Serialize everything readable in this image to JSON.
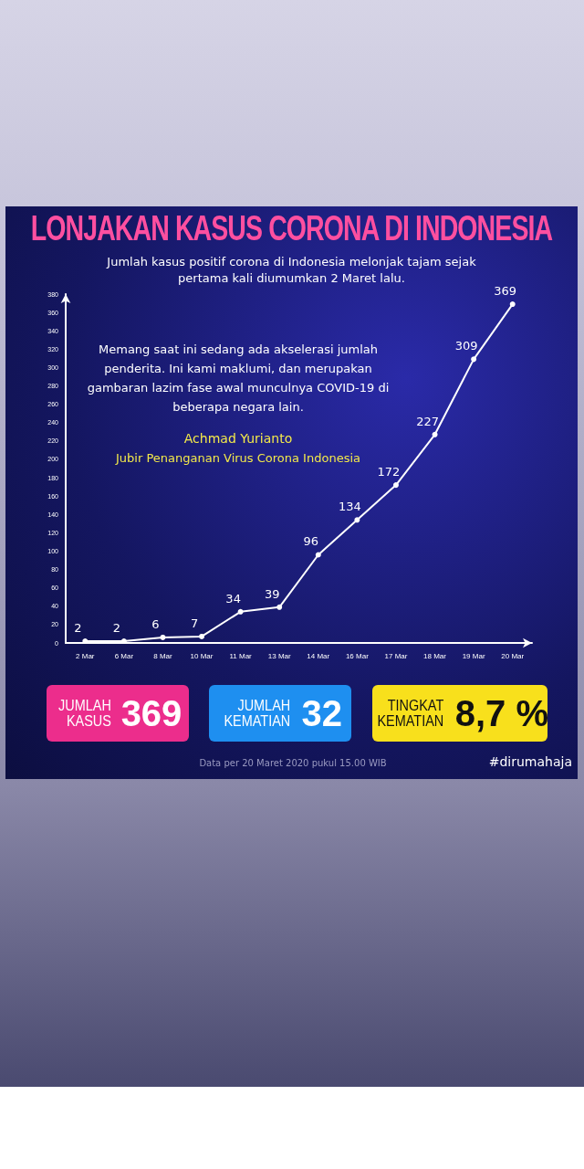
{
  "chart_data": {
    "type": "line",
    "title": "LONJAKAN KASUS CORONA DI INDONESIA",
    "subtitle": "Jumlah kasus positif corona di Indonesia melonjak tajam sejak pertama kali diumumkan 2 Maret lalu.",
    "categories": [
      "2 Mar",
      "6 Mar",
      "8 Mar",
      "10 Mar",
      "11 Mar",
      "13 Mar",
      "14 Mar",
      "16 Mar",
      "17 Mar",
      "18 Mar",
      "19 Mar",
      "20 Mar"
    ],
    "values": [
      2,
      2,
      6,
      7,
      34,
      39,
      96,
      134,
      172,
      227,
      309,
      369
    ],
    "color": "#ffffff",
    "ylim": [
      0,
      380
    ],
    "yticks": [
      0,
      20,
      40,
      60,
      80,
      100,
      120,
      140,
      160,
      180,
      200,
      220,
      240,
      260,
      280,
      300,
      320,
      340,
      360,
      380
    ],
    "grid": false,
    "marker": "circle",
    "line_style": "solid",
    "data_labels": true,
    "annotations": [
      "Memang saat ini sedang ada akselerasi jumlah penderita. Ini kami maklumi, dan merupakan gambaran lazim fase awal munculnya COVID-19 di beberapa negara lain.",
      "Achmad Yurianto",
      "Jubir Penanganan Virus Corona Indonesia",
      "JUMLAH KASUS",
      "369",
      "JUMLAH KEMATIAN",
      "32",
      "TINGKAT KEMATIAN",
      "8,7 %",
      "Data per 20 Maret 2020 pukul 15.00 WIB",
      "#dirumahaja"
    ]
  }
}
